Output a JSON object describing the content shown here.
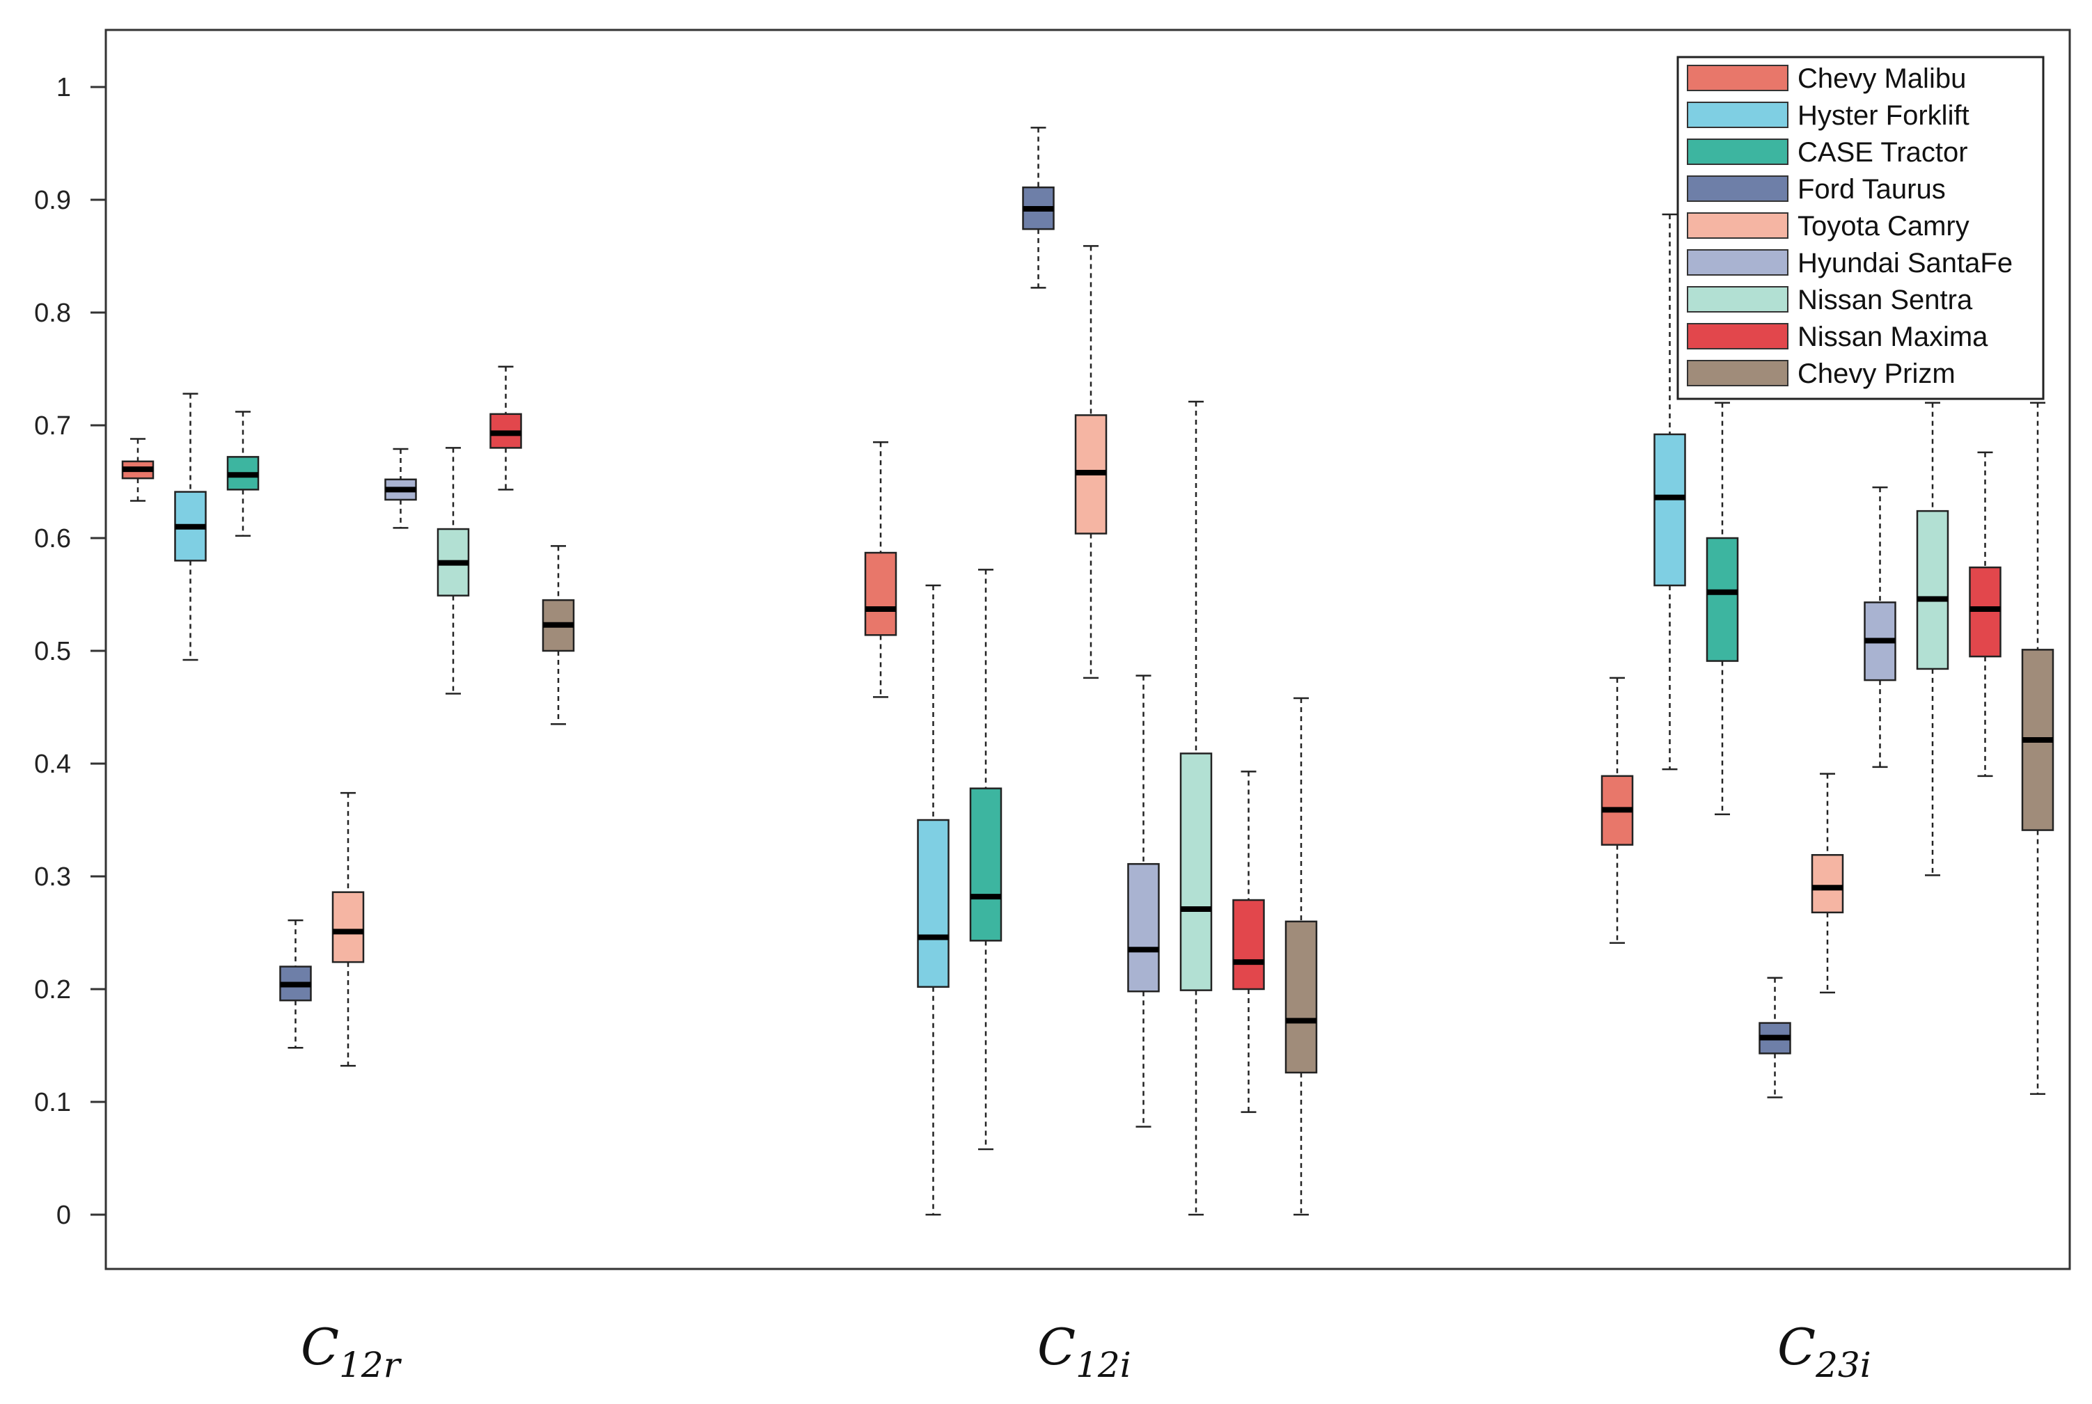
{
  "chart_data": {
    "type": "boxplot",
    "ylim": [
      0,
      1
    ],
    "yticks": [
      0,
      0.1,
      0.2,
      0.3,
      0.4,
      0.5,
      0.6,
      0.7,
      0.8,
      0.9,
      1
    ],
    "ytick_labels": [
      "0",
      "0.1",
      "0.2",
      "0.3",
      "0.4",
      "0.5",
      "0.6",
      "0.7",
      "0.8",
      "0.9",
      "1"
    ],
    "grid": false,
    "legend_position": "top-right",
    "series": [
      {
        "name": "Chevy Malibu",
        "color": "#E8776A"
      },
      {
        "name": "Hyster Forklift",
        "color": "#7FCFE3"
      },
      {
        "name": "CASE Tractor",
        "color": "#3DB5A0"
      },
      {
        "name": "Ford Taurus",
        "color": "#6E7FA8"
      },
      {
        "name": "Toyota Camry",
        "color": "#F5B5A3"
      },
      {
        "name": "Hyundai SantaFe",
        "color": "#A9B3D1"
      },
      {
        "name": "Nissan Sentra",
        "color": "#B2E0D3"
      },
      {
        "name": "Nissan Maxima",
        "color": "#E2474C"
      },
      {
        "name": "Chevy Prizm",
        "color": "#A08C7A"
      }
    ],
    "groups": [
      {
        "label_main": "C",
        "label_sub": "12r",
        "boxes": [
          {
            "min": 0.633,
            "q1": 0.653,
            "median": 0.661,
            "q3": 0.668,
            "max": 0.688
          },
          {
            "min": 0.492,
            "q1": 0.58,
            "median": 0.61,
            "q3": 0.641,
            "max": 0.728
          },
          {
            "min": 0.602,
            "q1": 0.643,
            "median": 0.656,
            "q3": 0.672,
            "max": 0.712
          },
          {
            "min": 0.148,
            "q1": 0.19,
            "median": 0.204,
            "q3": 0.22,
            "max": 0.261
          },
          {
            "min": 0.132,
            "q1": 0.224,
            "median": 0.251,
            "q3": 0.286,
            "max": 0.374
          },
          {
            "min": 0.609,
            "q1": 0.634,
            "median": 0.643,
            "q3": 0.652,
            "max": 0.679
          },
          {
            "min": 0.462,
            "q1": 0.549,
            "median": 0.578,
            "q3": 0.608,
            "max": 0.68
          },
          {
            "min": 0.643,
            "q1": 0.68,
            "median": 0.693,
            "q3": 0.71,
            "max": 0.752
          },
          {
            "min": 0.435,
            "q1": 0.5,
            "median": 0.523,
            "q3": 0.545,
            "max": 0.593
          }
        ]
      },
      {
        "label_main": "C",
        "label_sub": "12i",
        "boxes": [
          {
            "min": 0.459,
            "q1": 0.514,
            "median": 0.537,
            "q3": 0.587,
            "max": 0.685
          },
          {
            "min": 0.0,
            "q1": 0.202,
            "median": 0.246,
            "q3": 0.35,
            "max": 0.558
          },
          {
            "min": 0.058,
            "q1": 0.243,
            "median": 0.282,
            "q3": 0.378,
            "max": 0.572
          },
          {
            "min": 0.822,
            "q1": 0.874,
            "median": 0.892,
            "q3": 0.911,
            "max": 0.964
          },
          {
            "min": 0.476,
            "q1": 0.604,
            "median": 0.658,
            "q3": 0.709,
            "max": 0.859
          },
          {
            "min": 0.078,
            "q1": 0.198,
            "median": 0.235,
            "q3": 0.311,
            "max": 0.478
          },
          {
            "min": 0.0,
            "q1": 0.199,
            "median": 0.271,
            "q3": 0.409,
            "max": 0.721
          },
          {
            "min": 0.091,
            "q1": 0.2,
            "median": 0.224,
            "q3": 0.279,
            "max": 0.393
          },
          {
            "min": 0.0,
            "q1": 0.126,
            "median": 0.172,
            "q3": 0.26,
            "max": 0.458
          }
        ]
      },
      {
        "label_main": "C",
        "label_sub": "23i",
        "boxes": [
          {
            "min": 0.241,
            "q1": 0.328,
            "median": 0.359,
            "q3": 0.389,
            "max": 0.476
          },
          {
            "min": 0.395,
            "q1": 0.558,
            "median": 0.636,
            "q3": 0.692,
            "max": 0.887
          },
          {
            "min": 0.355,
            "q1": 0.491,
            "median": 0.552,
            "q3": 0.6,
            "max": 0.72
          },
          {
            "min": 0.104,
            "q1": 0.143,
            "median": 0.157,
            "q3": 0.17,
            "max": 0.21
          },
          {
            "min": 0.197,
            "q1": 0.268,
            "median": 0.29,
            "q3": 0.319,
            "max": 0.391
          },
          {
            "min": 0.397,
            "q1": 0.474,
            "median": 0.509,
            "q3": 0.543,
            "max": 0.645
          },
          {
            "min": 0.301,
            "q1": 0.484,
            "median": 0.546,
            "q3": 0.624,
            "max": 0.72
          },
          {
            "min": 0.389,
            "q1": 0.495,
            "median": 0.537,
            "q3": 0.574,
            "max": 0.676
          },
          {
            "min": 0.107,
            "q1": 0.341,
            "median": 0.421,
            "q3": 0.501,
            "max": 0.72
          }
        ]
      }
    ]
  }
}
